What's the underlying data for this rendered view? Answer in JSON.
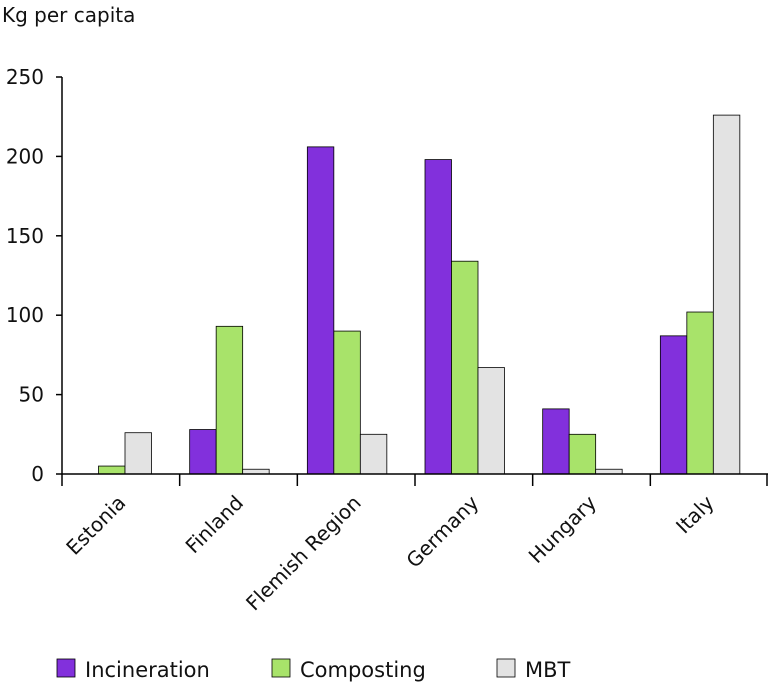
{
  "chart_data": {
    "type": "bar",
    "ylabel": "Kg per capita",
    "xlabel": "",
    "ylim": [
      0,
      250
    ],
    "yticks": [
      0,
      50,
      100,
      150,
      200,
      250
    ],
    "grid": false,
    "legend_position": "bottom",
    "categories": [
      "Estonia",
      "Finland",
      "Flemish Region",
      "Germany",
      "Hungary",
      "Italy"
    ],
    "series": [
      {
        "name": "Incineration",
        "color": "#8230dc",
        "values": [
          0,
          28,
          206,
          198,
          41,
          87
        ]
      },
      {
        "name": "Composting",
        "color": "#a8e36a",
        "values": [
          5,
          93,
          90,
          134,
          25,
          102
        ]
      },
      {
        "name": "MBT",
        "color": "#e3e3e3",
        "values": [
          26,
          3,
          25,
          67,
          3,
          226
        ]
      }
    ]
  }
}
